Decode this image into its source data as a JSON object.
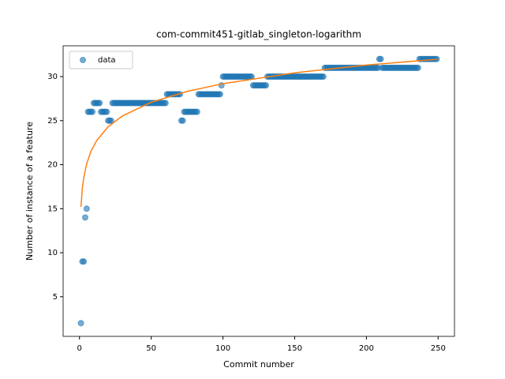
{
  "chart_data": {
    "type": "scatter",
    "title": "com-commit451-gitlab_singleton-logarithm",
    "xlabel": "Commit number",
    "ylabel": "Number of instance of a feature",
    "xlim": [
      -11.4,
      261.4
    ],
    "ylim": [
      0.5,
      33.5
    ],
    "xticks": [
      0,
      50,
      100,
      150,
      200,
      250
    ],
    "yticks": [
      5,
      10,
      15,
      20,
      25,
      30
    ],
    "grid": false,
    "legend": "upper left",
    "series": [
      {
        "name": "data",
        "mode": "markers",
        "color": "#1f77b4",
        "x": [
          1,
          2,
          3,
          4,
          5,
          6,
          7,
          8,
          9,
          10,
          11,
          12,
          13,
          14,
          15,
          16,
          17,
          18,
          19,
          20,
          21,
          22,
          23,
          24,
          25,
          26,
          27,
          28,
          29,
          30,
          31,
          32,
          33,
          34,
          35,
          36,
          37,
          38,
          39,
          40,
          41,
          42,
          43,
          44,
          45,
          46,
          47,
          48,
          49,
          50,
          51,
          52,
          53,
          54,
          55,
          56,
          57,
          58,
          59,
          60,
          61,
          62,
          63,
          64,
          65,
          66,
          67,
          68,
          69,
          70,
          71,
          72,
          73,
          74,
          75,
          76,
          77,
          78,
          79,
          80,
          81,
          82,
          83,
          84,
          85,
          86,
          87,
          88,
          89,
          90,
          91,
          92,
          93,
          94,
          95,
          96,
          97,
          98,
          99,
          100,
          101,
          102,
          103,
          104,
          105,
          106,
          107,
          108,
          109,
          110,
          111,
          112,
          113,
          114,
          115,
          116,
          117,
          118,
          119,
          120,
          121,
          122,
          123,
          124,
          125,
          126,
          127,
          128,
          129,
          130,
          131,
          132,
          133,
          134,
          135,
          136,
          137,
          138,
          139,
          140,
          141,
          142,
          143,
          144,
          145,
          146,
          147,
          148,
          149,
          150,
          151,
          152,
          153,
          154,
          155,
          156,
          157,
          158,
          159,
          160,
          161,
          162,
          163,
          164,
          165,
          166,
          167,
          168,
          169,
          170,
          171,
          172,
          173,
          174,
          175,
          176,
          177,
          178,
          179,
          180,
          181,
          182,
          183,
          184,
          185,
          186,
          187,
          188,
          189,
          190,
          191,
          192,
          193,
          194,
          195,
          196,
          197,
          198,
          199,
          200,
          201,
          202,
          203,
          204,
          205,
          206,
          207,
          208,
          209,
          210,
          211,
          212,
          213,
          214,
          215,
          216,
          217,
          218,
          219,
          220,
          221,
          222,
          223,
          224,
          225,
          226,
          227,
          228,
          229,
          230,
          231,
          232,
          233,
          234,
          235,
          236,
          237,
          238,
          239,
          240,
          241,
          242,
          243,
          244,
          245,
          246,
          247,
          248,
          249
        ],
        "values": [
          2,
          9,
          9,
          14,
          15,
          26,
          26,
          26,
          26,
          27,
          27,
          27,
          27,
          27,
          26,
          26,
          26,
          26,
          26,
          25,
          25,
          25,
          27,
          27,
          27,
          27,
          27,
          27,
          27,
          27,
          27,
          27,
          27,
          27,
          27,
          27,
          27,
          27,
          27,
          27,
          27,
          27,
          27,
          27,
          27,
          27,
          27,
          27,
          27,
          27,
          27,
          27,
          27,
          27,
          27,
          27,
          27,
          27,
          27,
          27,
          28,
          28,
          28,
          28,
          28,
          28,
          28,
          28,
          28,
          28,
          25,
          25,
          26,
          26,
          26,
          26,
          26,
          26,
          26,
          26,
          26,
          26,
          28,
          28,
          28,
          28,
          28,
          28,
          28,
          28,
          28,
          28,
          28,
          28,
          28,
          28,
          28,
          28,
          29,
          30,
          30,
          30,
          30,
          30,
          30,
          30,
          30,
          30,
          30,
          30,
          30,
          30,
          30,
          30,
          30,
          30,
          30,
          30,
          30,
          30,
          29,
          29,
          29,
          29,
          29,
          29,
          29,
          29,
          29,
          29,
          30,
          30,
          30,
          30,
          30,
          30,
          30,
          30,
          30,
          30,
          30,
          30,
          30,
          30,
          30,
          30,
          30,
          30,
          30,
          30,
          30,
          30,
          30,
          30,
          30,
          30,
          30,
          30,
          30,
          30,
          30,
          30,
          30,
          30,
          30,
          30,
          30,
          30,
          30,
          30,
          31,
          31,
          31,
          31,
          31,
          31,
          31,
          31,
          31,
          31,
          31,
          31,
          31,
          31,
          31,
          31,
          31,
          31,
          31,
          31,
          31,
          31,
          31,
          31,
          31,
          31,
          31,
          31,
          31,
          31,
          31,
          31,
          31,
          31,
          31,
          31,
          31,
          31,
          32,
          32,
          31,
          31,
          31,
          31,
          31,
          31,
          31,
          31,
          31,
          31,
          31,
          31,
          31,
          31,
          31,
          31,
          31,
          31,
          31,
          31,
          31,
          31,
          31,
          31,
          31,
          31,
          32,
          32,
          32,
          32,
          32,
          32,
          32,
          32,
          32,
          32,
          32,
          32,
          32
        ]
      },
      {
        "mode": "line",
        "color": "#ff7f0e",
        "x": [
          1,
          2,
          3,
          5,
          8,
          12,
          20,
          30,
          50,
          75,
          100,
          150,
          200,
          249
        ],
        "values": [
          15.2,
          17.31,
          18.54,
          20.09,
          21.52,
          22.75,
          24.31,
          25.54,
          27.09,
          28.32,
          29.2,
          30.43,
          31.31,
          31.97
        ]
      }
    ]
  }
}
